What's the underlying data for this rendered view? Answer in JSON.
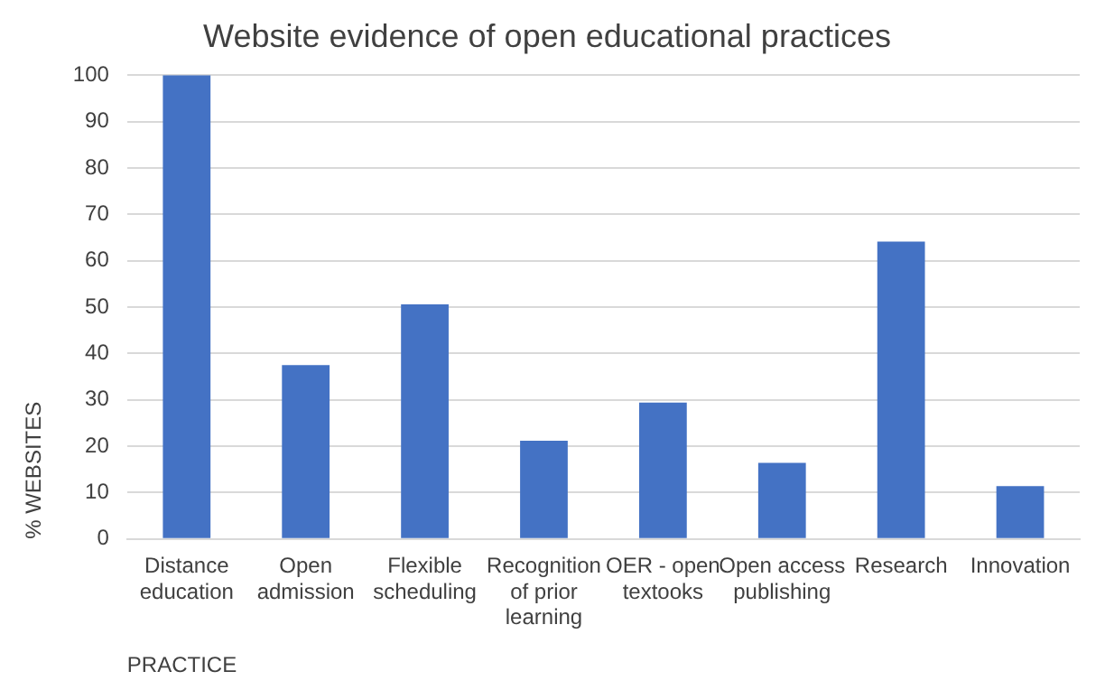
{
  "chart_data": {
    "type": "bar",
    "title": "Website evidence of open educational practices",
    "xlabel": "PRACTICE",
    "ylabel": "% WEBSITES",
    "categories": [
      "Distance education",
      "Open admission",
      "Flexible scheduling",
      "Recognition of prior learning",
      "OER - open textooks",
      "Open access publishing",
      "Research",
      "Innovation"
    ],
    "values": [
      100,
      37.5,
      50.6,
      21.2,
      29.4,
      16.4,
      64.1,
      11.4
    ],
    "color": "#4472c4",
    "ylim": [
      0,
      100
    ],
    "yticks": [
      0,
      10,
      20,
      30,
      40,
      50,
      60,
      70,
      80,
      90,
      100
    ],
    "grid": "y",
    "legend": false
  }
}
